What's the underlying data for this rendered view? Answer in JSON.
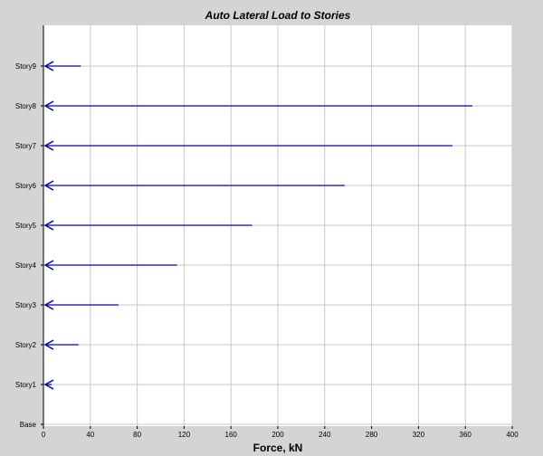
{
  "chart_data": {
    "type": "bar",
    "orientation": "horizontal",
    "title": "Auto Lateral Load to Stories",
    "xlabel": "Force, kN",
    "ylabel": "",
    "xlim": [
      0,
      400
    ],
    "xticks": [
      0,
      40,
      80,
      120,
      160,
      200,
      240,
      280,
      320,
      360,
      400
    ],
    "grid": true,
    "categories": [
      "Story9",
      "Story8",
      "Story7",
      "Story6",
      "Story5",
      "Story4",
      "Story3",
      "Story2",
      "Story1",
      "Base"
    ],
    "values": [
      32,
      366,
      349,
      257,
      178,
      114,
      64,
      30,
      7,
      null
    ],
    "colors": {
      "arrow": "#0000cc",
      "grid": "#c8c8c8",
      "plot_bg": "#ffffff",
      "frame_bg": "#d4d4d4"
    }
  }
}
